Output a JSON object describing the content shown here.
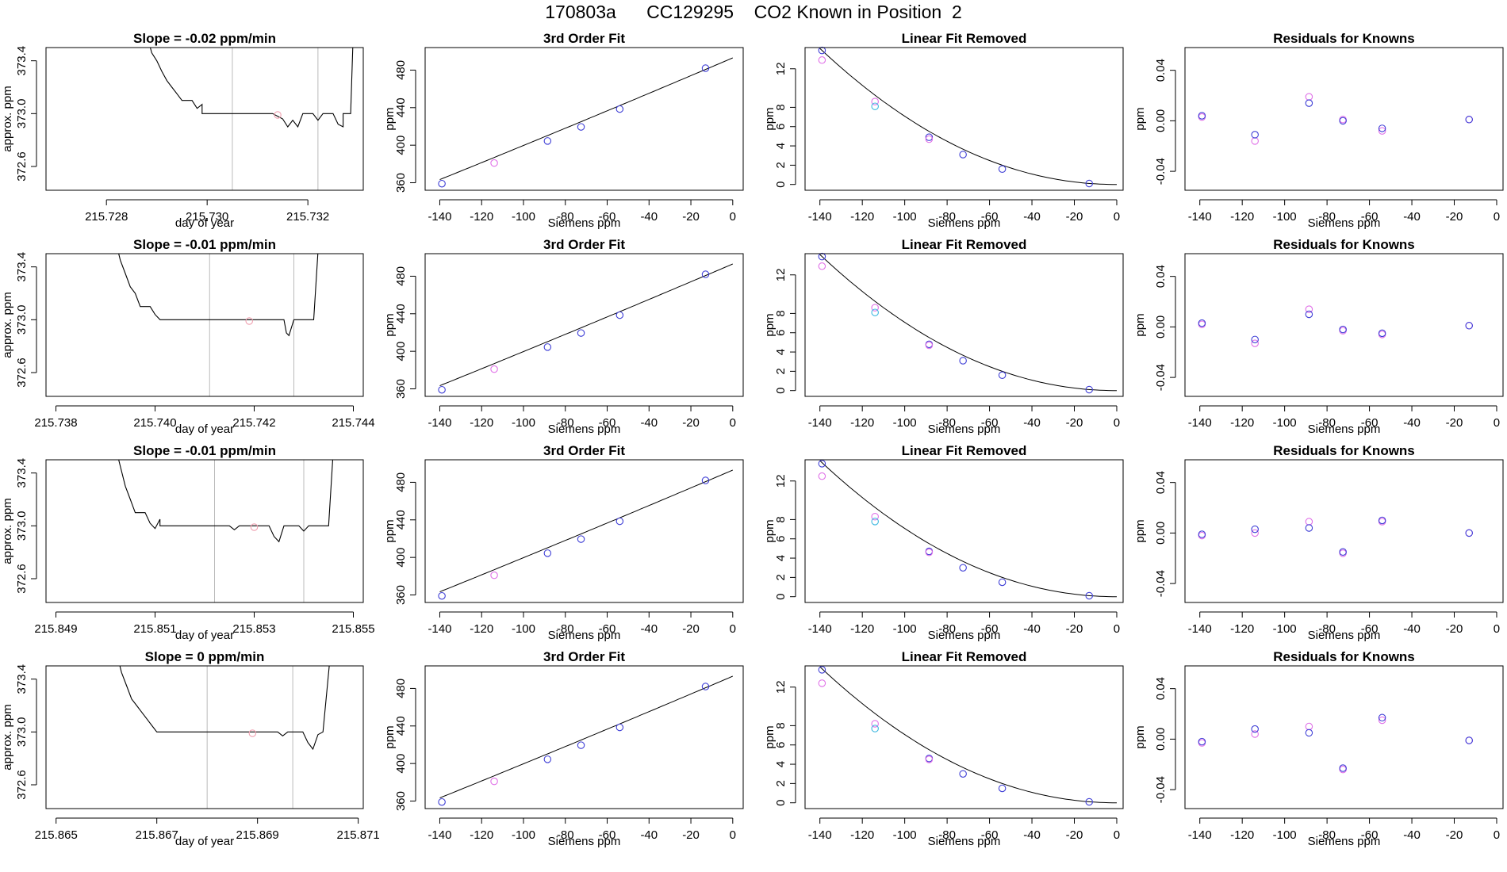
{
  "title": "170803a      CC129295    CO2 Known in Position  2",
  "chart_data": {
    "type": "scatter",
    "rows": [
      {
        "slope_title": "Slope =  -0.02  ppm/min",
        "xticks": [
          "215.728",
          "215.730",
          "215.732"
        ],
        "xticks_values": [
          215.728,
          215.73,
          215.732
        ],
        "xlim": [
          215.7268,
          215.7331
        ],
        "yticks": [
          "372.6",
          "373.0",
          "373.4"
        ],
        "yticks_values": [
          372.6,
          373.0,
          373.4
        ],
        "ylim": [
          372.42,
          373.5
        ],
        "vlines": [
          215.7305,
          215.7322
        ],
        "pink_point": [
          215.7314,
          372.99
        ],
        "trace": [
          [
            215.7288,
            373.6
          ],
          [
            215.7289,
            373.46
          ],
          [
            215.729,
            373.4
          ],
          [
            215.7291,
            373.32
          ],
          [
            215.7292,
            373.25
          ],
          [
            215.7293,
            373.2
          ],
          [
            215.7294,
            373.15
          ],
          [
            215.7295,
            373.1
          ],
          [
            215.7297,
            373.1
          ],
          [
            215.7298,
            373.04
          ],
          [
            215.7299,
            373.07
          ],
          [
            215.7299,
            373.0
          ],
          [
            215.7305,
            373.0
          ],
          [
            215.7313,
            373.0
          ],
          [
            215.7315,
            372.96
          ],
          [
            215.7316,
            372.9
          ],
          [
            215.7317,
            372.95
          ],
          [
            215.7318,
            372.9
          ],
          [
            215.7319,
            373.0
          ],
          [
            215.7321,
            373.0
          ],
          [
            215.7322,
            372.95
          ],
          [
            215.7323,
            373.0
          ],
          [
            215.7325,
            373.0
          ],
          [
            215.7326,
            372.92
          ],
          [
            215.7327,
            372.9
          ],
          [
            215.7327,
            373.0
          ],
          [
            215.73285,
            373.0
          ],
          [
            215.7329,
            373.6
          ]
        ]
      },
      {
        "slope_title": "Slope =  -0.01  ppm/min",
        "xticks": [
          "215.738",
          "215.740",
          "215.742",
          "215.744"
        ],
        "xticks_values": [
          215.738,
          215.74,
          215.742,
          215.744
        ],
        "xlim": [
          215.7378,
          215.7442
        ],
        "yticks": [
          "372.6",
          "373.0",
          "373.4"
        ],
        "yticks_values": [
          372.6,
          373.0,
          373.4
        ],
        "ylim": [
          372.42,
          373.5
        ],
        "vlines": [
          215.7411,
          215.7428
        ],
        "pink_point": [
          215.7419,
          372.99
        ],
        "trace": [
          [
            215.7392,
            373.6
          ],
          [
            215.7393,
            373.45
          ],
          [
            215.7394,
            373.35
          ],
          [
            215.7395,
            373.25
          ],
          [
            215.7396,
            373.2
          ],
          [
            215.7397,
            373.1
          ],
          [
            215.7399,
            373.1
          ],
          [
            215.74,
            373.04
          ],
          [
            215.7401,
            373.0
          ],
          [
            215.7426,
            373.0
          ],
          [
            215.74265,
            372.9
          ],
          [
            215.7427,
            372.88
          ],
          [
            215.7428,
            373.0
          ],
          [
            215.7432,
            373.0
          ],
          [
            215.7433,
            373.6
          ]
        ]
      },
      {
        "slope_title": "Slope =  -0.01  ppm/min",
        "xticks": [
          "215.849",
          "215.851",
          "215.853",
          "215.855"
        ],
        "xticks_values": [
          215.849,
          215.851,
          215.853,
          215.855
        ],
        "xlim": [
          215.8488,
          215.8552
        ],
        "yticks": [
          "372.6",
          "373.0",
          "373.4"
        ],
        "yticks_values": [
          372.6,
          373.0,
          373.4
        ],
        "ylim": [
          372.42,
          373.5
        ],
        "vlines": [
          215.8522,
          215.854
        ],
        "pink_point": [
          215.853,
          372.99
        ],
        "trace": [
          [
            215.8502,
            373.6
          ],
          [
            215.8503,
            373.45
          ],
          [
            215.8504,
            373.3
          ],
          [
            215.8505,
            373.2
          ],
          [
            215.8506,
            373.1
          ],
          [
            215.8508,
            373.1
          ],
          [
            215.8509,
            373.02
          ],
          [
            215.851,
            372.98
          ],
          [
            215.8511,
            373.05
          ],
          [
            215.8511,
            373.0
          ],
          [
            215.8525,
            373.0
          ],
          [
            215.8526,
            372.97
          ],
          [
            215.8527,
            373.0
          ],
          [
            215.8533,
            373.0
          ],
          [
            215.8534,
            372.92
          ],
          [
            215.8535,
            372.88
          ],
          [
            215.8536,
            373.0
          ],
          [
            215.8539,
            373.0
          ],
          [
            215.854,
            372.96
          ],
          [
            215.8541,
            373.0
          ],
          [
            215.8545,
            373.0
          ],
          [
            215.8546,
            373.6
          ]
        ]
      },
      {
        "slope_title": "Slope =  0  ppm/min",
        "xticks": [
          "215.865",
          "215.867",
          "215.869",
          "215.871"
        ],
        "xticks_values": [
          215.865,
          215.867,
          215.869,
          215.871
        ],
        "xlim": [
          215.8648,
          215.8711
        ],
        "yticks": [
          "372.6",
          "373.0",
          "373.4"
        ],
        "yticks_values": [
          372.6,
          373.0,
          373.4
        ],
        "ylim": [
          372.42,
          373.5
        ],
        "vlines": [
          215.868,
          215.8697
        ],
        "pink_point": [
          215.8689,
          372.99
        ],
        "trace": [
          [
            215.8662,
            373.6
          ],
          [
            215.8663,
            373.45
          ],
          [
            215.8664,
            373.35
          ],
          [
            215.8665,
            373.25
          ],
          [
            215.8666,
            373.2
          ],
          [
            215.8667,
            373.15
          ],
          [
            215.8668,
            373.1
          ],
          [
            215.8669,
            373.05
          ],
          [
            215.867,
            373.0
          ],
          [
            215.8694,
            373.0
          ],
          [
            215.8695,
            372.97
          ],
          [
            215.8696,
            373.0
          ],
          [
            215.8699,
            373.0
          ],
          [
            215.87,
            372.92
          ],
          [
            215.8701,
            372.87
          ],
          [
            215.8702,
            372.98
          ],
          [
            215.8703,
            373.0
          ],
          [
            215.87045,
            373.6
          ]
        ]
      }
    ],
    "fit_panel": {
      "title": "3rd Order Fit",
      "xlabel": "Siemens ppm",
      "ylabel": "ppm",
      "xlim": [
        -147,
        5
      ],
      "ylim": [
        352,
        504
      ],
      "xticks": [
        "-140",
        "-120",
        "-100",
        "-80",
        "-60",
        "-40",
        "-20",
        "0"
      ],
      "xticks_values": [
        -140,
        -120,
        -100,
        -80,
        -60,
        -40,
        -20,
        0
      ],
      "yticks": [
        "360",
        "400",
        "440",
        "480"
      ],
      "yticks_values": [
        360,
        400,
        440,
        480
      ],
      "blue_points": [
        [
          -139,
          359
        ],
        [
          -88.5,
          404.5
        ],
        [
          -72.5,
          419.5
        ],
        [
          -54,
          438.5
        ],
        [
          -13,
          482
        ]
      ],
      "pink_points": [
        [
          -114,
          381
        ]
      ]
    },
    "linear_panel": {
      "title": "Linear Fit Removed",
      "xlabel": "Siemens ppm",
      "ylabel": "ppm",
      "xlim": [
        -147,
        3
      ],
      "ylim": [
        -0.6,
        14.2
      ],
      "xticks": [
        "-140",
        "-120",
        "-100",
        "-80",
        "-60",
        "-40",
        "-20",
        "0"
      ],
      "xticks_values": [
        -140,
        -120,
        -100,
        -80,
        -60,
        -40,
        -20,
        0
      ],
      "yticks": [
        "0",
        "2",
        "4",
        "6",
        "8",
        "12"
      ],
      "yticks_values": [
        0,
        2,
        4,
        6,
        8,
        12
      ],
      "rows": [
        {
          "blue": [
            [
              -139,
              13.9
            ],
            [
              -88.5,
              4.9
            ],
            [
              -72.5,
              3.1
            ],
            [
              -54,
              1.6
            ],
            [
              -13,
              0.1
            ]
          ],
          "pink": [
            [
              -139,
              12.9
            ],
            [
              -114,
              8.6
            ],
            [
              -88.5,
              4.7
            ]
          ],
          "cyan": [
            [
              -114,
              8.1
            ]
          ]
        },
        {
          "blue": [
            [
              -139,
              13.9
            ],
            [
              -88.5,
              4.8
            ],
            [
              -72.5,
              3.1
            ],
            [
              -54,
              1.6
            ],
            [
              -13,
              0.1
            ]
          ],
          "pink": [
            [
              -139,
              12.9
            ],
            [
              -114,
              8.6
            ],
            [
              -88.5,
              4.7
            ]
          ],
          "cyan": [
            [
              -114,
              8.1
            ]
          ]
        },
        {
          "blue": [
            [
              -139,
              13.8
            ],
            [
              -88.5,
              4.7
            ],
            [
              -72.5,
              3.0
            ],
            [
              -54,
              1.5
            ],
            [
              -13,
              0.1
            ]
          ],
          "pink": [
            [
              -139,
              12.5
            ],
            [
              -114,
              8.3
            ],
            [
              -88.5,
              4.6
            ]
          ],
          "cyan": [
            [
              -114,
              7.8
            ]
          ]
        },
        {
          "blue": [
            [
              -139,
              13.8
            ],
            [
              -88.5,
              4.6
            ],
            [
              -72.5,
              3.0
            ],
            [
              -54,
              1.5
            ],
            [
              -13,
              0.1
            ]
          ],
          "pink": [
            [
              -139,
              12.4
            ],
            [
              -114,
              8.2
            ],
            [
              -88.5,
              4.5
            ]
          ],
          "cyan": [
            [
              -114,
              7.7
            ]
          ]
        }
      ]
    },
    "residual_panel": {
      "title": "Residuals for Knowns",
      "xlabel": "Siemens ppm",
      "ylabel": "ppm",
      "xlim": [
        -147,
        3
      ],
      "ylim": [
        -0.055,
        0.058
      ],
      "xticks": [
        "-140",
        "-120",
        "-100",
        "-80",
        "-60",
        "-40",
        "-20",
        "0"
      ],
      "xticks_values": [
        -140,
        -120,
        -100,
        -80,
        -60,
        -40,
        -20,
        0
      ],
      "yticks": [
        "-0.04",
        "0.00",
        "0.04"
      ],
      "yticks_values": [
        -0.04,
        0.0,
        0.04
      ],
      "rows": [
        {
          "blue": [
            [
              -139,
              0.004
            ],
            [
              -114,
              -0.011
            ],
            [
              -88.5,
              0.014
            ],
            [
              -72.5,
              0.0
            ],
            [
              -54,
              -0.006
            ],
            [
              -13,
              0.001
            ]
          ],
          "pink": [
            [
              -139,
              0.003
            ],
            [
              -114,
              -0.016
            ],
            [
              -88.5,
              0.019
            ],
            [
              -72.5,
              0.001
            ],
            [
              -54,
              -0.008
            ],
            [
              -13,
              0.001
            ]
          ]
        },
        {
          "blue": [
            [
              -139,
              0.003
            ],
            [
              -114,
              -0.01
            ],
            [
              -88.5,
              0.01
            ],
            [
              -72.5,
              -0.002
            ],
            [
              -54,
              -0.005
            ],
            [
              -13,
              0.001
            ]
          ],
          "pink": [
            [
              -139,
              0.002
            ],
            [
              -114,
              -0.013
            ],
            [
              -88.5,
              0.014
            ],
            [
              -72.5,
              -0.003
            ],
            [
              -54,
              -0.006
            ],
            [
              -13,
              0.001
            ]
          ]
        },
        {
          "blue": [
            [
              -139,
              -0.001
            ],
            [
              -114,
              0.003
            ],
            [
              -88.5,
              0.004
            ],
            [
              -72.5,
              -0.015
            ],
            [
              -54,
              0.01
            ],
            [
              -13,
              0.0
            ]
          ],
          "pink": [
            [
              -139,
              -0.002
            ],
            [
              -114,
              0.0
            ],
            [
              -88.5,
              0.009
            ],
            [
              -72.5,
              -0.016
            ],
            [
              -54,
              0.009
            ],
            [
              -13,
              0.0
            ]
          ]
        },
        {
          "blue": [
            [
              -139,
              -0.002
            ],
            [
              -114,
              0.008
            ],
            [
              -88.5,
              0.005
            ],
            [
              -72.5,
              -0.023
            ],
            [
              -54,
              0.017
            ],
            [
              -13,
              -0.001
            ]
          ],
          "pink": [
            [
              -139,
              -0.003
            ],
            [
              -114,
              0.004
            ],
            [
              -88.5,
              0.01
            ],
            [
              -72.5,
              -0.024
            ],
            [
              -54,
              0.015
            ],
            [
              -13,
              -0.001
            ]
          ]
        }
      ]
    },
    "left_panel": {
      "xlabel": "day of year",
      "ylabel": "approx. ppm"
    },
    "colors": {
      "blue": "#3f3fd6",
      "pink": "#e070e8",
      "cyan": "#3fb8e0",
      "vline": "#bbbbbb",
      "pink_point": "#f0a0b0"
    }
  }
}
